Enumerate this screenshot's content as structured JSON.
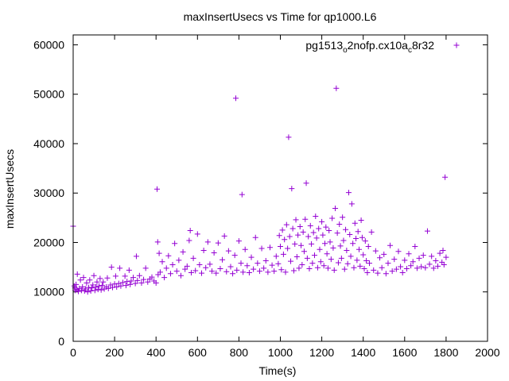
{
  "chart_data": {
    "type": "scatter",
    "title": "maxInsertUsecs vs Time for qp1000.L6",
    "xlabel": "Time(s)",
    "ylabel": "maxInsertUsecs",
    "xlim": [
      0,
      2000
    ],
    "ylim": [
      0,
      62000
    ],
    "x_ticks": [
      0,
      200,
      400,
      600,
      800,
      1000,
      1200,
      1400,
      1600,
      1800,
      2000
    ],
    "y_ticks": [
      0,
      10000,
      20000,
      30000,
      40000,
      50000,
      60000
    ],
    "grid": false,
    "legend": {
      "position": "top-right"
    },
    "series": [
      {
        "name": "pg1513_o2nofp.cx10a_c8r32",
        "legend_parts": [
          {
            "text": "pg1513",
            "sub": false
          },
          {
            "text": "o",
            "sub": true
          },
          {
            "text": "2nofp.cx10a",
            "sub": false
          },
          {
            "text": "c",
            "sub": true
          },
          {
            "text": "8r32",
            "sub": false
          }
        ],
        "color": "#9400d3",
        "marker": "plus",
        "points": [
          [
            0,
            23300
          ],
          [
            5,
            11200
          ],
          [
            8,
            10800
          ],
          [
            10,
            10300
          ],
          [
            14,
            11500
          ],
          [
            18,
            10500
          ],
          [
            20,
            13600
          ],
          [
            25,
            10100
          ],
          [
            30,
            10700
          ],
          [
            35,
            12400
          ],
          [
            40,
            10300
          ],
          [
            45,
            11000
          ],
          [
            50,
            12900
          ],
          [
            55,
            10200
          ],
          [
            60,
            10600
          ],
          [
            65,
            11800
          ],
          [
            70,
            10000
          ],
          [
            75,
            10900
          ],
          [
            80,
            12400
          ],
          [
            85,
            10200
          ],
          [
            90,
            10800
          ],
          [
            95,
            11400
          ],
          [
            100,
            13300
          ],
          [
            105,
            10300
          ],
          [
            110,
            11000
          ],
          [
            115,
            12000
          ],
          [
            120,
            10500
          ],
          [
            125,
            11200
          ],
          [
            130,
            12700
          ],
          [
            135,
            10400
          ],
          [
            140,
            11300
          ],
          [
            145,
            12000
          ],
          [
            150,
            10600
          ],
          [
            160,
            11000
          ],
          [
            165,
            12800
          ],
          [
            170,
            10700
          ],
          [
            180,
            11400
          ],
          [
            185,
            15000
          ],
          [
            190,
            10900
          ],
          [
            200,
            11600
          ],
          [
            205,
            13200
          ],
          [
            210,
            11000
          ],
          [
            220,
            11700
          ],
          [
            225,
            14800
          ],
          [
            230,
            11200
          ],
          [
            240,
            11900
          ],
          [
            250,
            13200
          ],
          [
            255,
            11300
          ],
          [
            260,
            12100
          ],
          [
            270,
            14400
          ],
          [
            275,
            11500
          ],
          [
            280,
            12200
          ],
          [
            290,
            12900
          ],
          [
            300,
            11700
          ],
          [
            305,
            17200
          ],
          [
            310,
            12300
          ],
          [
            320,
            13300
          ],
          [
            330,
            11800
          ],
          [
            340,
            12500
          ],
          [
            350,
            14800
          ],
          [
            360,
            12000
          ],
          [
            370,
            12600
          ],
          [
            380,
            13000
          ],
          [
            390,
            12200
          ],
          [
            400,
            11800
          ],
          [
            405,
            30800
          ],
          [
            408,
            20100
          ],
          [
            410,
            13500
          ],
          [
            415,
            17800
          ],
          [
            420,
            14000
          ],
          [
            430,
            16100
          ],
          [
            440,
            12900
          ],
          [
            450,
            14800
          ],
          [
            460,
            17300
          ],
          [
            470,
            13700
          ],
          [
            480,
            15500
          ],
          [
            490,
            19800
          ],
          [
            500,
            14200
          ],
          [
            510,
            16400
          ],
          [
            520,
            13300
          ],
          [
            530,
            18100
          ],
          [
            540,
            14600
          ],
          [
            550,
            15200
          ],
          [
            560,
            20400
          ],
          [
            565,
            22400
          ],
          [
            570,
            13900
          ],
          [
            580,
            16800
          ],
          [
            590,
            14300
          ],
          [
            600,
            21700
          ],
          [
            610,
            15500
          ],
          [
            620,
            13800
          ],
          [
            630,
            18400
          ],
          [
            640,
            14900
          ],
          [
            650,
            20100
          ],
          [
            660,
            15600
          ],
          [
            670,
            14200
          ],
          [
            680,
            17900
          ],
          [
            690,
            13800
          ],
          [
            700,
            19900
          ],
          [
            710,
            14700
          ],
          [
            720,
            16500
          ],
          [
            730,
            21300
          ],
          [
            740,
            14100
          ],
          [
            750,
            18300
          ],
          [
            760,
            15100
          ],
          [
            770,
            13700
          ],
          [
            780,
            17400
          ],
          [
            785,
            49200
          ],
          [
            790,
            14400
          ],
          [
            800,
            20300
          ],
          [
            810,
            15800
          ],
          [
            815,
            29700
          ],
          [
            820,
            14000
          ],
          [
            830,
            18600
          ],
          [
            840,
            15300
          ],
          [
            850,
            13900
          ],
          [
            860,
            17000
          ],
          [
            870,
            14600
          ],
          [
            880,
            21000
          ],
          [
            890,
            15800
          ],
          [
            900,
            14200
          ],
          [
            910,
            18800
          ],
          [
            920,
            14800
          ],
          [
            930,
            16300
          ],
          [
            940,
            14000
          ],
          [
            950,
            19000
          ],
          [
            960,
            15400
          ],
          [
            970,
            14200
          ],
          [
            980,
            17200
          ],
          [
            990,
            15700
          ],
          [
            995,
            21400
          ],
          [
            1000,
            19200
          ],
          [
            1005,
            14500
          ],
          [
            1010,
            22500
          ],
          [
            1015,
            17600
          ],
          [
            1020,
            20600
          ],
          [
            1025,
            14000
          ],
          [
            1030,
            23600
          ],
          [
            1035,
            18800
          ],
          [
            1040,
            41300
          ],
          [
            1045,
            21200
          ],
          [
            1050,
            16200
          ],
          [
            1055,
            30900
          ],
          [
            1060,
            22800
          ],
          [
            1065,
            14300
          ],
          [
            1070,
            19700
          ],
          [
            1075,
            24600
          ],
          [
            1080,
            17100
          ],
          [
            1085,
            21500
          ],
          [
            1090,
            14800
          ],
          [
            1095,
            23200
          ],
          [
            1100,
            19400
          ],
          [
            1105,
            15500
          ],
          [
            1110,
            22100
          ],
          [
            1115,
            18200
          ],
          [
            1120,
            24700
          ],
          [
            1125,
            32000
          ],
          [
            1130,
            16800
          ],
          [
            1135,
            21200
          ],
          [
            1140,
            14700
          ],
          [
            1145,
            23400
          ],
          [
            1150,
            19700
          ],
          [
            1155,
            15800
          ],
          [
            1160,
            22000
          ],
          [
            1165,
            17400
          ],
          [
            1170,
            25300
          ],
          [
            1175,
            20900
          ],
          [
            1180,
            14900
          ],
          [
            1185,
            22800
          ],
          [
            1190,
            18600
          ],
          [
            1195,
            16100
          ],
          [
            1200,
            24200
          ],
          [
            1205,
            21500
          ],
          [
            1210,
            15300
          ],
          [
            1215,
            19800
          ],
          [
            1220,
            23100
          ],
          [
            1225,
            17700
          ],
          [
            1230,
            14800
          ],
          [
            1235,
            22400
          ],
          [
            1240,
            20100
          ],
          [
            1245,
            16600
          ],
          [
            1250,
            24900
          ],
          [
            1255,
            18900
          ],
          [
            1260,
            14400
          ],
          [
            1265,
            26900
          ],
          [
            1270,
            51200
          ],
          [
            1275,
            21900
          ],
          [
            1280,
            15900
          ],
          [
            1285,
            23700
          ],
          [
            1290,
            19300
          ],
          [
            1295,
            16800
          ],
          [
            1300,
            25100
          ],
          [
            1305,
            20400
          ],
          [
            1310,
            14600
          ],
          [
            1315,
            22600
          ],
          [
            1320,
            18400
          ],
          [
            1325,
            15700
          ],
          [
            1330,
            30100
          ],
          [
            1335,
            21600
          ],
          [
            1340,
            17200
          ],
          [
            1345,
            27800
          ],
          [
            1350,
            19800
          ],
          [
            1355,
            14900
          ],
          [
            1360,
            23900
          ],
          [
            1365,
            20800
          ],
          [
            1370,
            16400
          ],
          [
            1375,
            22200
          ],
          [
            1380,
            18600
          ],
          [
            1385,
            15200
          ],
          [
            1390,
            24500
          ],
          [
            1395,
            21000
          ],
          [
            1400,
            17500
          ],
          [
            1405,
            14700
          ],
          [
            1410,
            20300
          ],
          [
            1415,
            16300
          ],
          [
            1420,
            13900
          ],
          [
            1425,
            19200
          ],
          [
            1430,
            15800
          ],
          [
            1440,
            22100
          ],
          [
            1450,
            14400
          ],
          [
            1460,
            18300
          ],
          [
            1470,
            13800
          ],
          [
            1480,
            16900
          ],
          [
            1490,
            14900
          ],
          [
            1500,
            17600
          ],
          [
            1510,
            13700
          ],
          [
            1520,
            15800
          ],
          [
            1530,
            19400
          ],
          [
            1540,
            14200
          ],
          [
            1550,
            16600
          ],
          [
            1560,
            14600
          ],
          [
            1570,
            18200
          ],
          [
            1580,
            15100
          ],
          [
            1590,
            13900
          ],
          [
            1600,
            16400
          ],
          [
            1610,
            14700
          ],
          [
            1620,
            17700
          ],
          [
            1630,
            15300
          ],
          [
            1640,
            16100
          ],
          [
            1650,
            19200
          ],
          [
            1660,
            14800
          ],
          [
            1670,
            16800
          ],
          [
            1680,
            15100
          ],
          [
            1690,
            17400
          ],
          [
            1700,
            14900
          ],
          [
            1710,
            22300
          ],
          [
            1720,
            15600
          ],
          [
            1730,
            17200
          ],
          [
            1740,
            14800
          ],
          [
            1750,
            16300
          ],
          [
            1760,
            15200
          ],
          [
            1770,
            17800
          ],
          [
            1780,
            16000
          ],
          [
            1785,
            18400
          ],
          [
            1790,
            15500
          ],
          [
            1795,
            33200
          ],
          [
            1800,
            17000
          ]
        ]
      }
    ]
  }
}
